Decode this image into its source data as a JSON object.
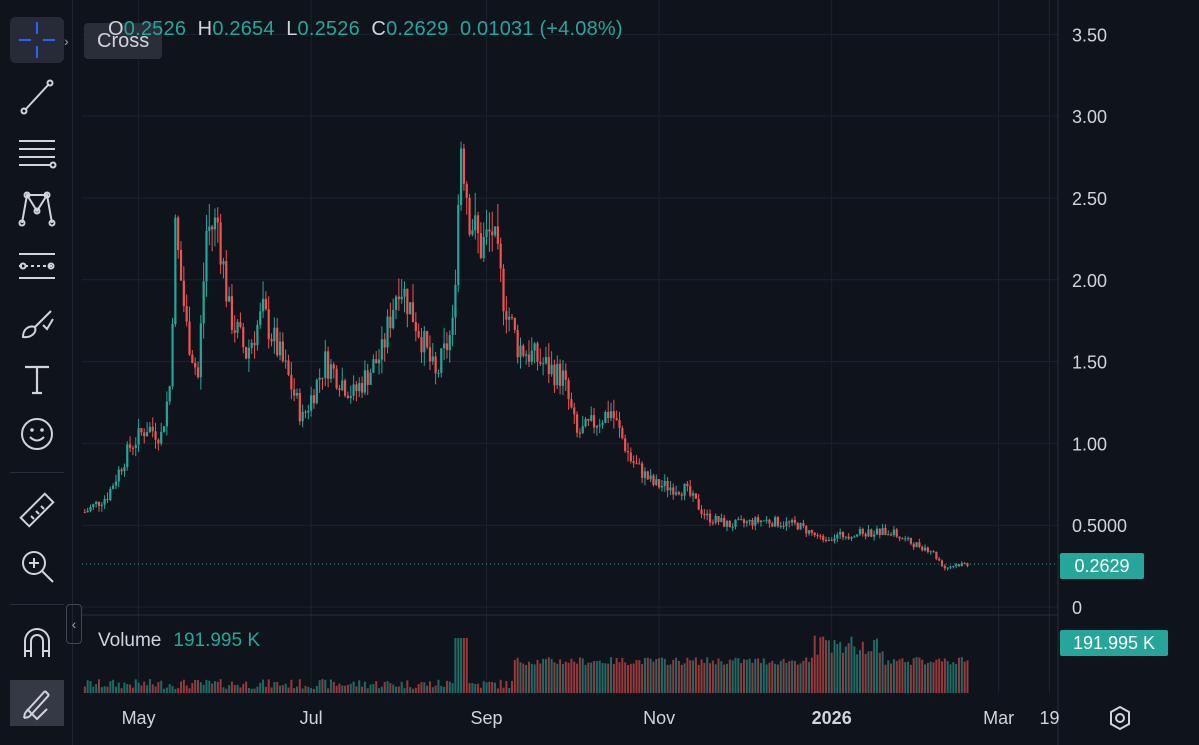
{
  "toolbar": {
    "items": [
      {
        "name": "cross",
        "icon": "crosshair-icon"
      },
      {
        "name": "trend-line",
        "icon": "trend-line-icon"
      },
      {
        "name": "fib",
        "icon": "fib-retracement-icon"
      },
      {
        "name": "pattern",
        "icon": "pattern-icon"
      },
      {
        "name": "prediction",
        "icon": "forecast-icon"
      },
      {
        "name": "brush",
        "icon": "brush-icon"
      },
      {
        "name": "text",
        "icon": "text-icon"
      },
      {
        "name": "emoji",
        "icon": "emoji-icon"
      },
      {
        "name": "ruler",
        "icon": "ruler-icon"
      },
      {
        "name": "zoom",
        "icon": "zoom-in-icon"
      },
      {
        "name": "magnet",
        "icon": "magnet-icon"
      },
      {
        "name": "lock-drawings",
        "icon": "pencil-lock-icon"
      }
    ],
    "tooltip": "Cross",
    "collapse_glyph": "‹"
  },
  "ohlc": {
    "o_label": "O",
    "o_value": "0.2526",
    "h_label": "H",
    "h_value": "0.2654",
    "l_label": "L",
    "l_value": "0.2526",
    "c_label": "C",
    "c_value": "0.2629",
    "change": "0.01031",
    "change_pct": "(+4.08%)"
  },
  "volume_legend": {
    "label": "Volume",
    "value": "191.995 K"
  },
  "price_tag": "0.2629",
  "volume_tag": "191.995 K",
  "colors": {
    "up": "#26a69a",
    "down": "#ef5350",
    "bg": "#0f131b",
    "grid": "#1c2230",
    "axis_text": "#d1d4dc"
  },
  "chart_data": {
    "type": "candlestick",
    "y_axis": {
      "ticks": [
        "0",
        "0.5000",
        "1.00",
        "1.50",
        "2.00",
        "2.50",
        "3.00",
        "3.50"
      ],
      "values": [
        0,
        0.5,
        1.0,
        1.5,
        2.0,
        2.5,
        3.0,
        3.5
      ],
      "range": [
        0,
        3.6
      ]
    },
    "x_axis": {
      "ticks": [
        "May",
        "Jul",
        "Sep",
        "Nov",
        "2026",
        "Mar",
        "19"
      ],
      "bold": "2026",
      "range": [
        "2025-04-11",
        "2026-03-22"
      ]
    },
    "tick_dates": [
      "2025-05-01",
      "2025-07-01",
      "2025-09-01",
      "2025-11-01",
      "2026-01-01",
      "2026-03-01",
      "2026-03-19"
    ],
    "last_close": 0.2629,
    "close_path": [
      {
        "date": "2025-04-12",
        "close": 0.58
      },
      {
        "date": "2025-04-20",
        "close": 0.68
      },
      {
        "date": "2025-04-28",
        "close": 0.98
      },
      {
        "date": "2025-05-04",
        "close": 1.1
      },
      {
        "date": "2025-05-09",
        "close": 1.05
      },
      {
        "date": "2025-05-12",
        "close": 1.35
      },
      {
        "date": "2025-05-14",
        "close": 2.3
      },
      {
        "date": "2025-05-18",
        "close": 1.7
      },
      {
        "date": "2025-05-22",
        "close": 1.4
      },
      {
        "date": "2025-05-25",
        "close": 2.3
      },
      {
        "date": "2025-05-29",
        "close": 2.35
      },
      {
        "date": "2025-06-02",
        "close": 1.8
      },
      {
        "date": "2025-06-08",
        "close": 1.55
      },
      {
        "date": "2025-06-14",
        "close": 1.8
      },
      {
        "date": "2025-06-22",
        "close": 1.45
      },
      {
        "date": "2025-06-28",
        "close": 1.15
      },
      {
        "date": "2025-07-06",
        "close": 1.5
      },
      {
        "date": "2025-07-16",
        "close": 1.3
      },
      {
        "date": "2025-07-26",
        "close": 1.55
      },
      {
        "date": "2025-08-01",
        "close": 2.0
      },
      {
        "date": "2025-08-08",
        "close": 1.7
      },
      {
        "date": "2025-08-14",
        "close": 1.4
      },
      {
        "date": "2025-08-20",
        "close": 1.7
      },
      {
        "date": "2025-08-23",
        "close": 2.85
      },
      {
        "date": "2025-08-26",
        "close": 2.4
      },
      {
        "date": "2025-08-30",
        "close": 2.2
      },
      {
        "date": "2025-09-03",
        "close": 2.3
      },
      {
        "date": "2025-09-07",
        "close": 1.9
      },
      {
        "date": "2025-09-12",
        "close": 1.6
      },
      {
        "date": "2025-09-20",
        "close": 1.5
      },
      {
        "date": "2025-09-28",
        "close": 1.4
      },
      {
        "date": "2025-10-03",
        "close": 1.05
      },
      {
        "date": "2025-10-07",
        "close": 1.1
      },
      {
        "date": "2025-10-15",
        "close": 1.2
      },
      {
        "date": "2025-10-22",
        "close": 0.9
      },
      {
        "date": "2025-10-30",
        "close": 0.75
      },
      {
        "date": "2025-11-10",
        "close": 0.72
      },
      {
        "date": "2025-11-18",
        "close": 0.55
      },
      {
        "date": "2025-11-26",
        "close": 0.5
      },
      {
        "date": "2025-12-08",
        "close": 0.53
      },
      {
        "date": "2025-12-20",
        "close": 0.5
      },
      {
        "date": "2025-12-28",
        "close": 0.42
      },
      {
        "date": "2026-01-10",
        "close": 0.45
      },
      {
        "date": "2026-01-22",
        "close": 0.46
      },
      {
        "date": "2026-01-28",
        "close": 0.4
      },
      {
        "date": "2026-02-05",
        "close": 0.35
      },
      {
        "date": "2026-02-10",
        "close": 0.24
      },
      {
        "date": "2026-02-14",
        "close": 0.26
      },
      {
        "date": "2026-02-18",
        "close": 0.2629
      }
    ]
  }
}
